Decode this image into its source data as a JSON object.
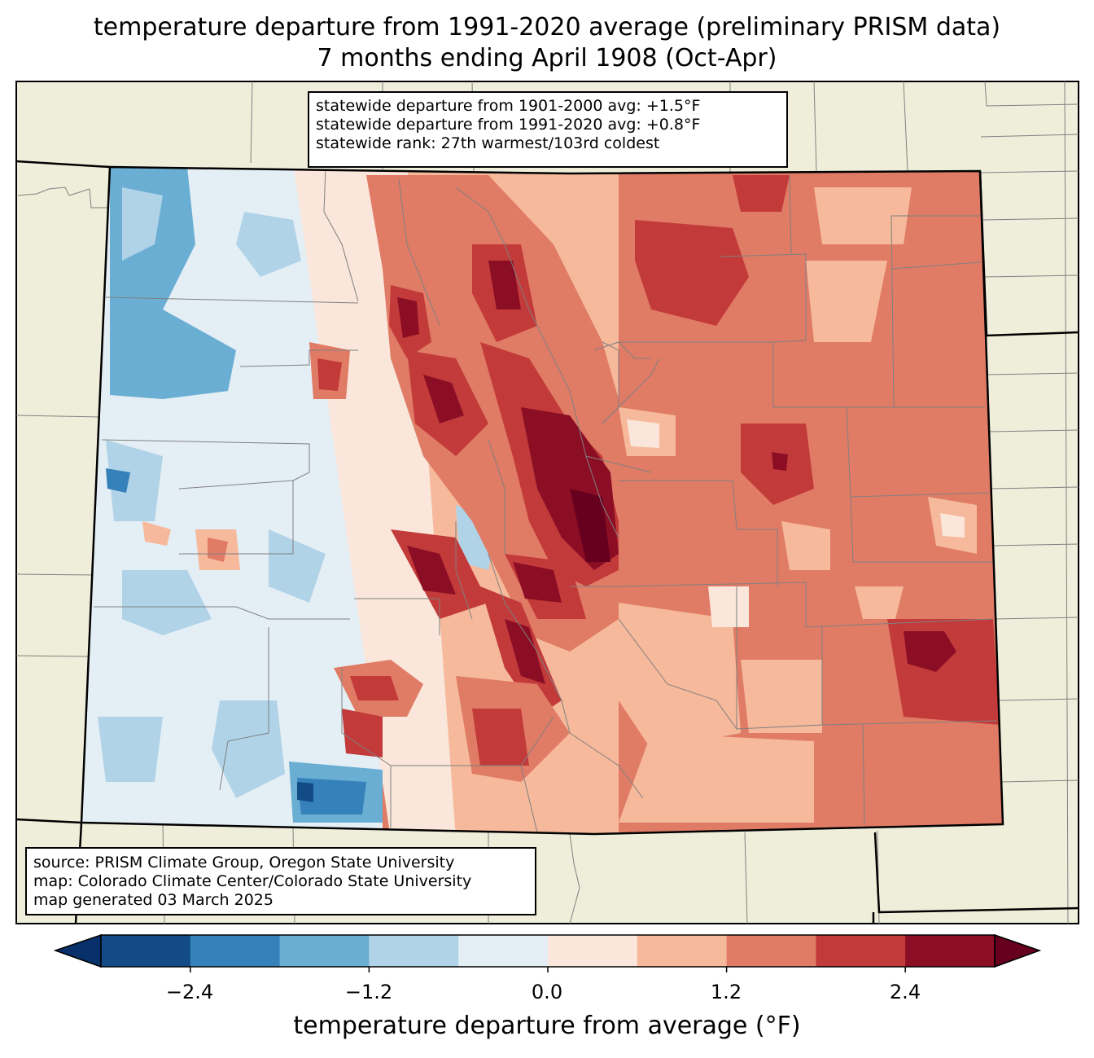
{
  "title": {
    "line1": "temperature departure from 1991-2020 average (preliminary PRISM data)",
    "line2": "7 months ending April 1908 (Oct-Apr)"
  },
  "stats": {
    "line1": "statewide departure from 1901-2000 avg: +1.5°F",
    "line2": "statewide departure from 1991-2020 avg: +0.8°F",
    "line3": "statewide rank: 27th warmest/103rd coldest"
  },
  "source": {
    "line1": "source: PRISM Climate Group, Oregon State University",
    "line2": "map: Colorado Climate Center/Colorado State University",
    "line3": "map generated 03 March 2025"
  },
  "colorbar": {
    "label": "temperature departure from average (°F)",
    "ticks": [
      "−2.4",
      "−1.2",
      "0.0",
      "1.2",
      "2.4"
    ],
    "levels": [
      -3.0,
      -2.4,
      -1.8,
      -1.2,
      -0.6,
      0.0,
      0.6,
      1.2,
      1.8,
      2.4,
      3.0
    ],
    "colors": {
      "under": "#08306b",
      "bins": [
        "#134b87",
        "#3581ba",
        "#6aaed3",
        "#b0d3e7",
        "#e4eef5",
        "#fae6da",
        "#f6b99b",
        "#e07b65",
        "#c33a3a",
        "#8c0e25"
      ],
      "over": "#67001f"
    }
  },
  "colors": {
    "land": "#efeedb",
    "county_lines": "#808080",
    "state_lines": "#000000",
    "background": "#ffffff"
  }
}
